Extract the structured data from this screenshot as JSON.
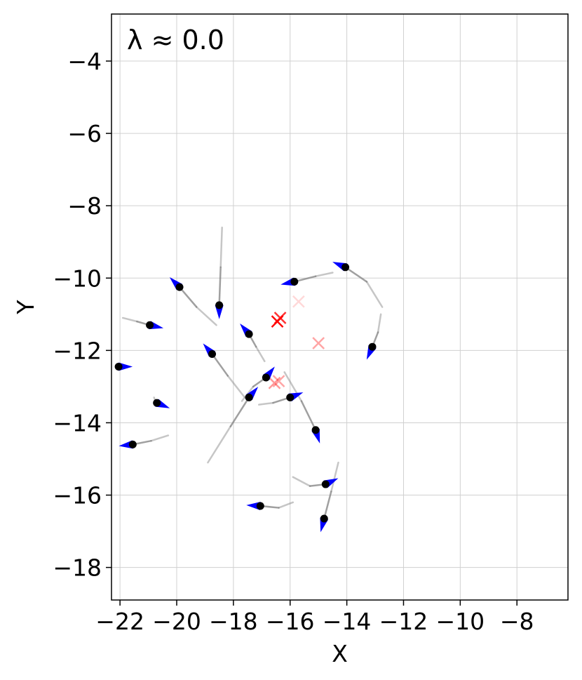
{
  "chart_data": {
    "type": "scatter",
    "annotation": "λ ≈ 0.0",
    "xlabel": "X",
    "ylabel": "Y",
    "xlim": [
      -22.3,
      -6.2
    ],
    "ylim": [
      -18.9,
      -2.7
    ],
    "xticks": [
      -22,
      -20,
      -18,
      -16,
      -14,
      -12,
      -10,
      -8
    ],
    "yticks": [
      -4,
      -6,
      -8,
      -10,
      -12,
      -14,
      -16,
      -18
    ],
    "xtick_labels": [
      "−22",
      "−20",
      "−18",
      "−16",
      "−14",
      "−12",
      "−10",
      "−8"
    ],
    "ytick_labels": [
      "−4",
      "−6",
      "−8",
      "−10",
      "−12",
      "−14",
      "−16",
      "−18"
    ],
    "grid": true,
    "colors": {
      "agent": "#000000",
      "heading": "#0000ff",
      "trail": "#808080",
      "target": "#ff0000"
    },
    "agents": [
      {
        "x": -19.9,
        "y": -10.25,
        "trail": [
          [
            -18.6,
            -11.3
          ],
          [
            -19.3,
            -10.8
          ],
          [
            -19.9,
            -10.25
          ]
        ],
        "heading": [
          -0.7,
          0.7
        ]
      },
      {
        "x": -18.5,
        "y": -10.75,
        "trail": [
          [
            -18.4,
            -8.6
          ],
          [
            -18.45,
            -9.7
          ],
          [
            -18.5,
            -10.75
          ]
        ],
        "heading": [
          0.0,
          -1.0
        ]
      },
      {
        "x": -20.95,
        "y": -11.3,
        "trail": [
          [
            -21.9,
            -11.1
          ],
          [
            -21.4,
            -11.2
          ],
          [
            -20.95,
            -11.3
          ]
        ],
        "heading": [
          0.9,
          -0.2
        ]
      },
      {
        "x": -17.45,
        "y": -11.55,
        "trail": [
          [
            -16.9,
            -12.3
          ],
          [
            -17.2,
            -11.9
          ],
          [
            -17.45,
            -11.55
          ]
        ],
        "heading": [
          -0.6,
          0.7
        ]
      },
      {
        "x": -15.85,
        "y": -10.1,
        "trail": [
          [
            -14.5,
            -9.85
          ],
          [
            -15.1,
            -9.95
          ],
          [
            -15.85,
            -10.1
          ]
        ],
        "heading": [
          -0.95,
          -0.2
        ]
      },
      {
        "x": -14.05,
        "y": -9.7,
        "trail": [
          [
            -12.75,
            -10.8
          ],
          [
            -13.3,
            -10.1
          ],
          [
            -14.05,
            -9.7
          ]
        ],
        "heading": [
          -0.85,
          0.35
        ]
      },
      {
        "x": -13.1,
        "y": -11.9,
        "trail": [
          [
            -12.8,
            -11.0
          ],
          [
            -12.9,
            -11.5
          ],
          [
            -13.1,
            -11.9
          ]
        ],
        "heading": [
          -0.4,
          -0.9
        ]
      },
      {
        "x": -18.75,
        "y": -12.1,
        "trail": [
          [
            -17.6,
            -13.3
          ],
          [
            -18.2,
            -12.7
          ],
          [
            -18.75,
            -12.1
          ]
        ],
        "heading": [
          -0.6,
          0.7
        ]
      },
      {
        "x": -22.05,
        "y": -12.45,
        "trail": [
          [
            -22.05,
            -12.45
          ]
        ],
        "heading": [
          1.0,
          0.0
        ]
      },
      {
        "x": -16.85,
        "y": -12.75,
        "trail": [
          [
            -17.7,
            -13.4
          ],
          [
            -17.3,
            -13.0
          ],
          [
            -16.85,
            -12.75
          ]
        ],
        "heading": [
          0.6,
          0.75
        ]
      },
      {
        "x": -17.45,
        "y": -13.3,
        "trail": [
          [
            -18.9,
            -15.1
          ],
          [
            -18.1,
            -14.1
          ],
          [
            -17.45,
            -13.3
          ]
        ],
        "heading": [
          0.6,
          0.7
        ]
      },
      {
        "x": -16.0,
        "y": -13.3,
        "trail": [
          [
            -17.1,
            -13.5
          ],
          [
            -16.6,
            -13.45
          ],
          [
            -16.0,
            -13.3
          ]
        ],
        "heading": [
          0.9,
          0.35
        ]
      },
      {
        "x": -20.7,
        "y": -13.45,
        "trail": [
          [
            -20.8,
            -13.3
          ],
          [
            -20.75,
            -13.4
          ],
          [
            -20.7,
            -13.45
          ]
        ],
        "heading": [
          0.85,
          -0.35
        ]
      },
      {
        "x": -15.1,
        "y": -14.2,
        "trail": [
          [
            -16.2,
            -12.6
          ],
          [
            -15.6,
            -13.4
          ],
          [
            -15.1,
            -14.2
          ]
        ],
        "heading": [
          0.3,
          -0.95
        ]
      },
      {
        "x": -21.55,
        "y": -14.6,
        "trail": [
          [
            -20.3,
            -14.35
          ],
          [
            -20.9,
            -14.5
          ],
          [
            -21.55,
            -14.6
          ]
        ],
        "heading": [
          -0.95,
          -0.1
        ]
      },
      {
        "x": -14.75,
        "y": -15.7,
        "trail": [
          [
            -15.9,
            -15.5
          ],
          [
            -15.3,
            -15.75
          ],
          [
            -14.75,
            -15.7
          ]
        ],
        "heading": [
          0.85,
          0.4
        ]
      },
      {
        "x": -17.05,
        "y": -16.3,
        "trail": [
          [
            -15.9,
            -16.2
          ],
          [
            -16.4,
            -16.35
          ],
          [
            -17.05,
            -16.3
          ]
        ],
        "heading": [
          -0.95,
          0.05
        ]
      },
      {
        "x": -14.8,
        "y": -16.65,
        "trail": [
          [
            -14.3,
            -15.1
          ],
          [
            -14.55,
            -15.9
          ],
          [
            -14.8,
            -16.65
          ]
        ],
        "heading": [
          -0.25,
          -0.95
        ]
      }
    ],
    "targets": [
      {
        "x": -16.45,
        "y": -11.2,
        "opacity": 0.95
      },
      {
        "x": -16.35,
        "y": -11.1,
        "opacity": 0.8
      },
      {
        "x": -15.7,
        "y": -10.65,
        "opacity": 0.15
      },
      {
        "x": -15.0,
        "y": -11.8,
        "opacity": 0.35
      },
      {
        "x": -16.55,
        "y": -12.9,
        "opacity": 0.4
      },
      {
        "x": -16.4,
        "y": -12.85,
        "opacity": 0.35
      }
    ]
  }
}
